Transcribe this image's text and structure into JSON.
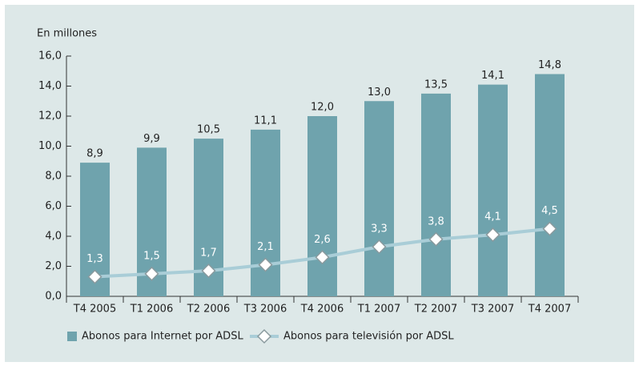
{
  "chart_data": {
    "type": "bar",
    "y_label": "En millones",
    "categories": [
      "T4 2005",
      "T1 2006",
      "T2 2006",
      "T3 2006",
      "T4 2006",
      "T1 2007",
      "T2 2007",
      "T3 2007",
      "T4 2007"
    ],
    "series": [
      {
        "name": "Abonos para Internet por ADSL",
        "type": "bar",
        "color": "#6fa3ad",
        "values": [
          8.9,
          9.9,
          10.5,
          11.1,
          12.0,
          13.0,
          13.5,
          14.1,
          14.8
        ],
        "value_labels": [
          "8,9",
          "9,9",
          "10,5",
          "11,1",
          "12,0",
          "13,0",
          "13,5",
          "14,1",
          "14,8"
        ]
      },
      {
        "name": "Abonos para televisión por ADSL",
        "type": "line",
        "color": "#a9cdd7",
        "values": [
          1.3,
          1.5,
          1.7,
          2.1,
          2.6,
          3.3,
          3.8,
          4.1,
          4.5
        ],
        "value_labels": [
          "1,3",
          "1,5",
          "1,7",
          "2,1",
          "2,6",
          "3,3",
          "3,8",
          "4,1",
          "4,5"
        ]
      }
    ],
    "ylim": [
      0,
      16
    ],
    "yticks": [
      {
        "value": 0,
        "label": "0,0"
      },
      {
        "value": 2,
        "label": "2,0"
      },
      {
        "value": 4,
        "label": "4,0"
      },
      {
        "value": 6,
        "label": "6,0"
      },
      {
        "value": 8,
        "label": "8,0"
      },
      {
        "value": 10,
        "label": "10,0"
      },
      {
        "value": 12,
        "label": "12,0"
      },
      {
        "value": 14,
        "label": "14,0"
      },
      {
        "value": 16,
        "label": "16,0"
      }
    ],
    "legend": "bottom-left"
  }
}
